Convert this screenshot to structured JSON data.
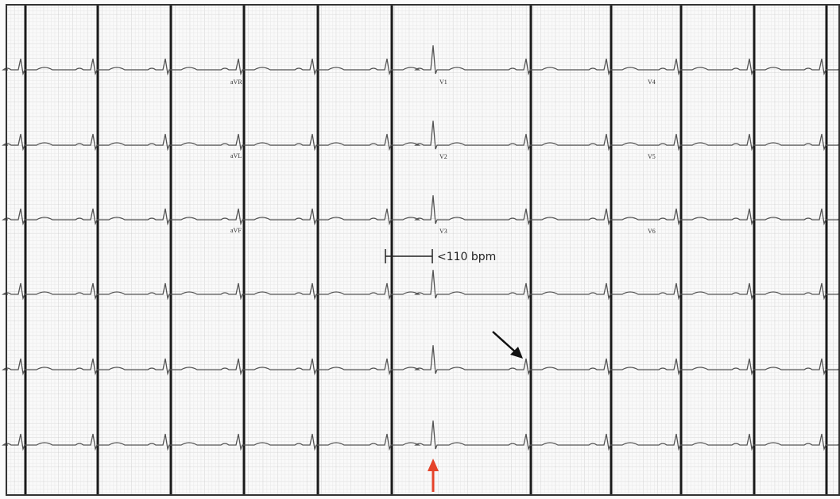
{
  "lead_labels": [
    "aVR",
    "aVL",
    "aVF",
    "V1",
    "V2",
    "V3",
    "V4",
    "V5",
    "V6"
  ],
  "annotation": "<110 bpm"
}
